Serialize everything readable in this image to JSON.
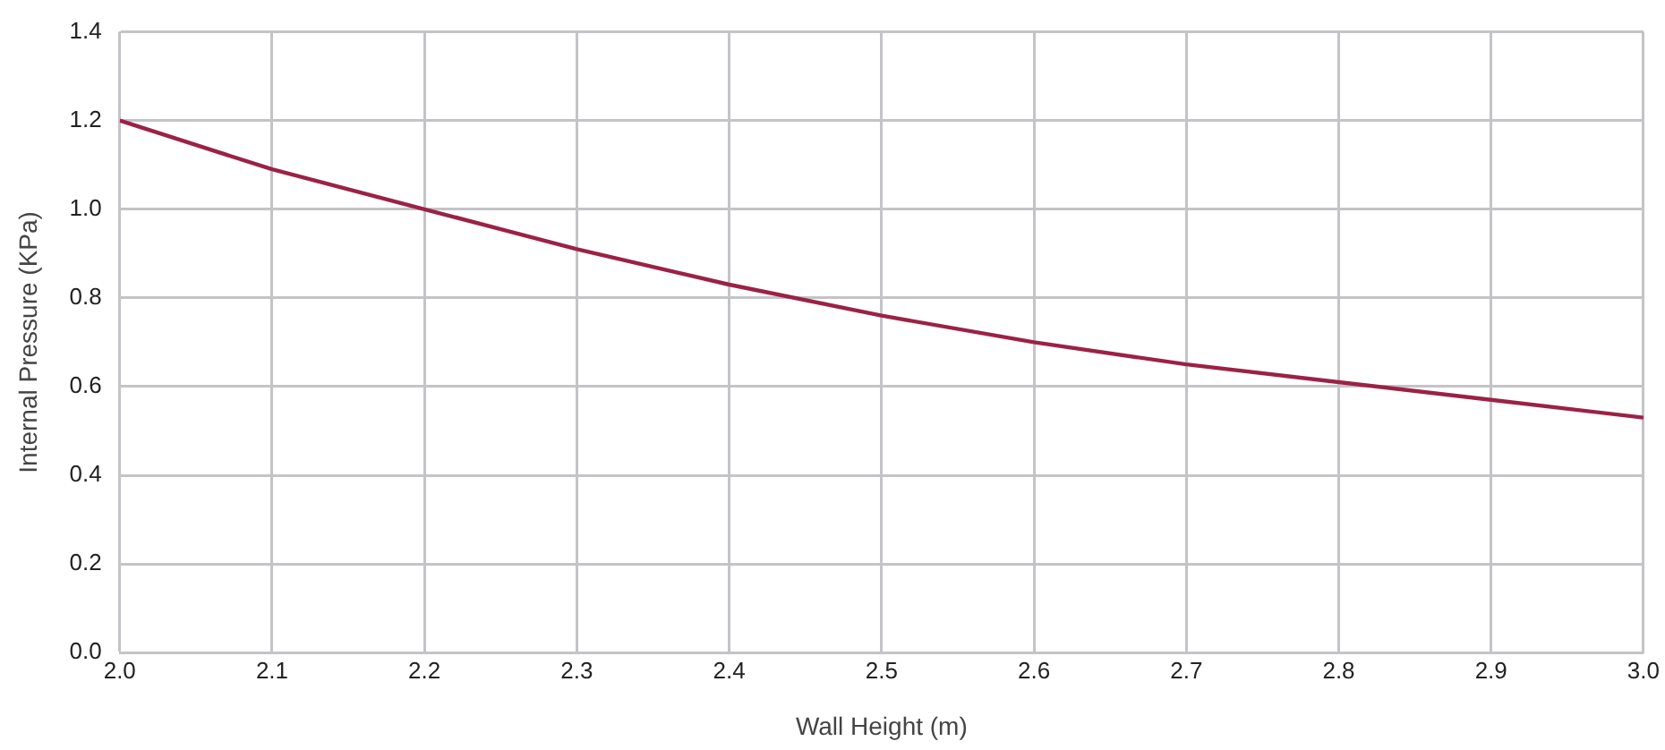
{
  "chart_data": {
    "type": "line",
    "xlabel": "Wall Height (m)",
    "ylabel": "Internal Pressure (KPa)",
    "x": [
      2.0,
      2.1,
      2.2,
      2.3,
      2.4,
      2.5,
      2.6,
      2.7,
      2.8,
      2.9,
      3.0
    ],
    "series": [
      {
        "color": "#9b2245",
        "values": [
          1.2,
          1.09,
          1.0,
          0.91,
          0.83,
          0.76,
          0.7,
          0.65,
          0.61,
          0.57,
          0.53
        ]
      }
    ],
    "xlim": [
      2.0,
      3.0
    ],
    "xticks": [
      {
        "value": 2.0,
        "label": "2.0"
      },
      {
        "value": 2.1,
        "label": "2.1"
      },
      {
        "value": 2.2,
        "label": "2.2"
      },
      {
        "value": 2.3,
        "label": "2.3"
      },
      {
        "value": 2.4,
        "label": "2.4"
      },
      {
        "value": 2.5,
        "label": "2.5"
      },
      {
        "value": 2.6,
        "label": "2.6"
      },
      {
        "value": 2.7,
        "label": "2.7"
      },
      {
        "value": 2.8,
        "label": "2.8"
      },
      {
        "value": 2.9,
        "label": "2.9"
      },
      {
        "value": 3.0,
        "label": "3.0"
      }
    ],
    "ylim": [
      0,
      1.4
    ],
    "yticks": [
      {
        "value": 0,
        "label": "0.0"
      },
      {
        "value": 0.2,
        "label": "0.2"
      },
      {
        "value": 0.4,
        "label": "0.4"
      },
      {
        "value": 0.6,
        "label": "0.6"
      },
      {
        "value": 0.8,
        "label": "0.8"
      },
      {
        "value": 1.0,
        "label": "1.0"
      },
      {
        "value": 1.2,
        "label": "1.2"
      },
      {
        "value": 1.4,
        "label": "1.4"
      }
    ],
    "grid": true,
    "legend": false,
    "marker": "none",
    "line_style": "solid"
  }
}
